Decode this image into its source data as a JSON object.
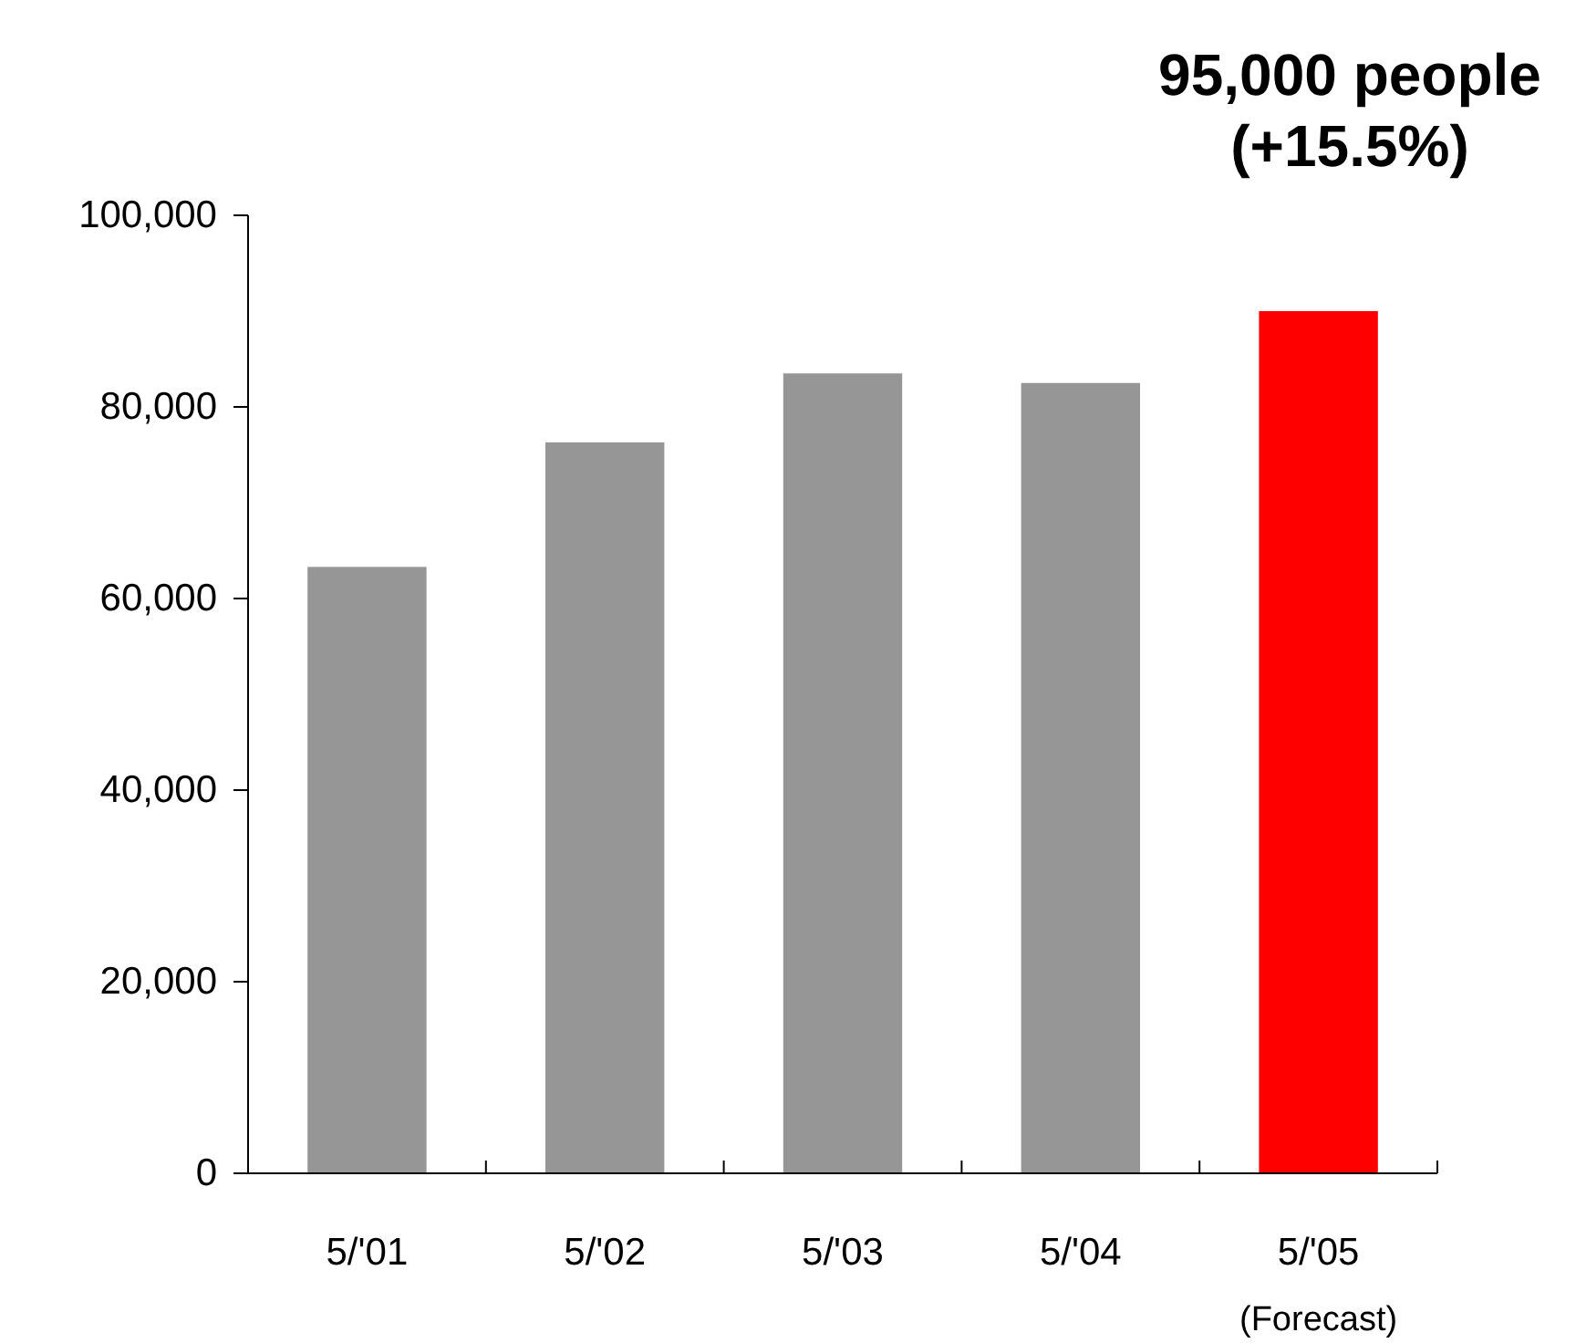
{
  "chart_data": {
    "type": "bar",
    "categories": [
      "5/'01",
      "5/'02",
      "5/'03",
      "5/'04",
      "5/'05\n(Forecast)"
    ],
    "values": [
      63300,
      76300,
      83500,
      82500,
      90000
    ],
    "colors": [
      "#969696",
      "#969696",
      "#969696",
      "#969696",
      "#ff0000"
    ],
    "ylim": [
      0,
      100000
    ],
    "yticks": [
      {
        "value": 0,
        "label": "0"
      },
      {
        "value": 20000,
        "label": "20,000"
      },
      {
        "value": 40000,
        "label": "40,000"
      },
      {
        "value": 60000,
        "label": "60,000"
      },
      {
        "value": 80000,
        "label": "80,000"
      },
      {
        "value": 100000,
        "label": "100,000"
      }
    ],
    "grid": false,
    "annotations": [
      "95,000 people\n(+15.5%)"
    ]
  }
}
